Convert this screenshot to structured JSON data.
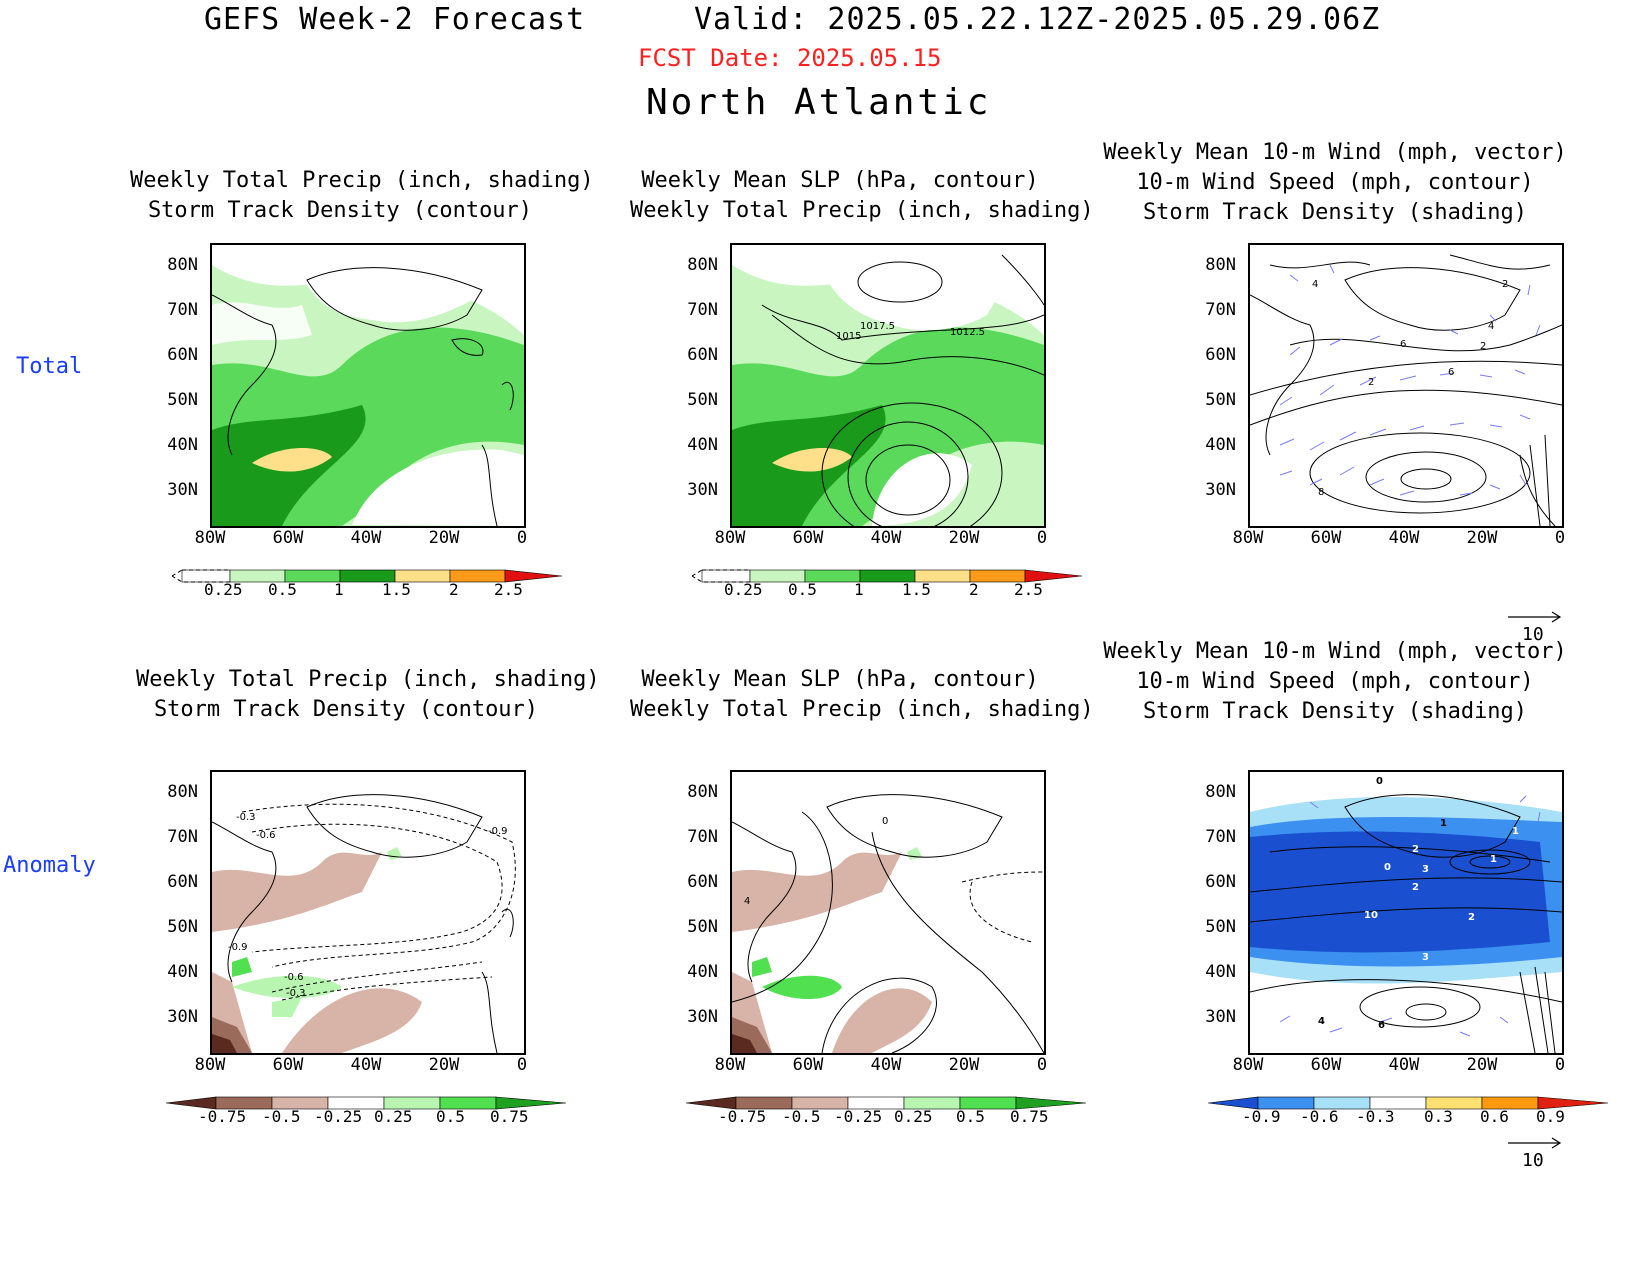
{
  "header": {
    "title": "GEFS Week-2 Forecast",
    "valid": "Valid: 2025.05.22.12Z-2025.05.29.06Z",
    "fcst_date": "FCST Date: 2025.05.15",
    "region": "North Atlantic"
  },
  "rows": {
    "total": "Total",
    "anomaly": "Anomaly"
  },
  "axes": {
    "lat_labels": [
      "80N",
      "70N",
      "60N",
      "50N",
      "40N",
      "30N"
    ],
    "lon_labels": [
      "80W",
      "60W",
      "40W",
      "20W",
      "0"
    ]
  },
  "panels": {
    "p1": {
      "line1": "Weekly Total Precip (inch, shading)",
      "line2": "Storm Track Density (contour)"
    },
    "p2": {
      "line1": "Weekly Mean SLP (hPa, contour)",
      "line2": "Weekly Total Precip (inch, shading)"
    },
    "p3": {
      "line1": "Weekly Mean 10-m Wind (mph, vector)",
      "line2": "10-m Wind Speed (mph, contour)",
      "line3": "Storm Track Density (shading)"
    },
    "p4": {
      "line1": "Weekly Total Precip (inch, shading)",
      "line2": "Storm Track Density (contour)"
    },
    "p5": {
      "line1": "Weekly Mean SLP (hPa, contour)",
      "line2": "Weekly Total Precip (inch, shading)"
    },
    "p6": {
      "line1": "Weekly Mean 10-m Wind (mph, vector)",
      "line2": "10-m Wind Speed (mph, contour)",
      "line3": "Storm Track Density (shading)"
    }
  },
  "contour_labels": {
    "slp_total": [
      "1017.5",
      "1015",
      "1012.5"
    ],
    "std_anom": [
      "-0.3",
      "-0.6",
      "-0.9",
      "-0.9",
      "-0.6",
      "-0.3"
    ],
    "slp_anom": [
      "0",
      "4"
    ],
    "wind_total": [
      "4",
      "2",
      "6",
      "6",
      "2",
      "4",
      "2",
      "8"
    ],
    "wind_anom": [
      "2",
      "3",
      "0",
      "1",
      "2",
      "1",
      "3",
      "10",
      "2",
      "1",
      "4",
      "6",
      "0"
    ]
  },
  "colorbars": {
    "precip_total": {
      "labels": [
        "0.25",
        "0.5",
        "1",
        "1.5",
        "2",
        "2.5"
      ],
      "colors": [
        "#ffffff",
        "#c8f5c0",
        "#5ad95a",
        "#1a9a1a",
        "#ffe08a",
        "#ff9a1a",
        "#e01010"
      ]
    },
    "precip_anom": {
      "labels": [
        "-0.75",
        "-0.5",
        "-0.25",
        "0.25",
        "0.5",
        "0.75"
      ],
      "colors": [
        "#5a2a20",
        "#9a6a5a",
        "#d8b4a8",
        "#ffffff",
        "#b8f5b0",
        "#50e050",
        "#20a020"
      ]
    },
    "std_anom": {
      "labels": [
        "-0.9",
        "-0.6",
        "-0.3",
        "0.3",
        "0.6",
        "0.9"
      ],
      "colors": [
        "#1a50d0",
        "#3c90f0",
        "#a8e0f8",
        "#ffffff",
        "#ffe070",
        "#ff9a10",
        "#e02010"
      ]
    }
  },
  "vector_ref": "10"
}
